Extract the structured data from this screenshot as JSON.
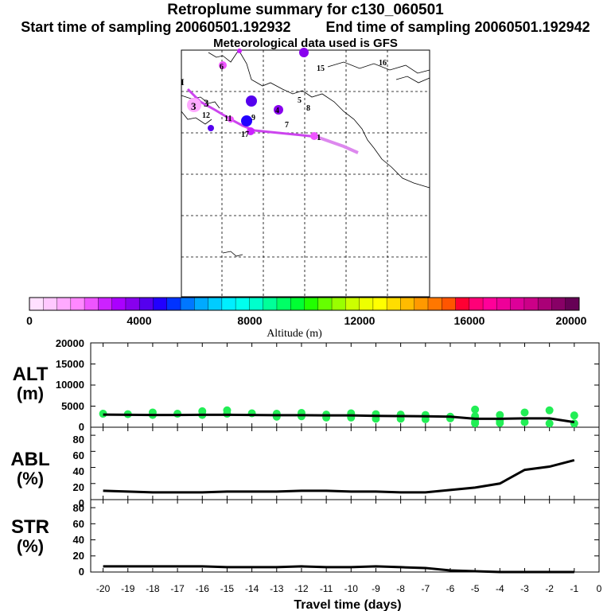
{
  "header": {
    "title": "Retroplume summary for c130_060501",
    "start_label": "Start time of sampling 20060501.192932",
    "end_label": "End time of sampling 20060501.192942",
    "met_label": "Meteorological data used is GFS"
  },
  "map": {
    "markers": [
      {
        "label": "1"
      },
      {
        "label": "3"
      },
      {
        "label": "4"
      },
      {
        "label": "5"
      },
      {
        "label": "6"
      },
      {
        "label": "7"
      },
      {
        "label": "8"
      },
      {
        "label": "9"
      },
      {
        "label": "11"
      },
      {
        "label": "12"
      },
      {
        "label": "15"
      },
      {
        "label": "16"
      },
      {
        "label": "17"
      },
      {
        "label": "3"
      },
      {
        "label": "I"
      }
    ]
  },
  "colorbar": {
    "label": "Altitude (m)",
    "tick_labels": [
      "0",
      "4000",
      "8000",
      "12000",
      "16000",
      "20000"
    ],
    "colors": [
      "#ffe0ff",
      "#ffc8ff",
      "#ffaaff",
      "#ff88ff",
      "#ee55ff",
      "#cc22ff",
      "#aa00ff",
      "#8800ee",
      "#5500ee",
      "#2200ff",
      "#0033ff",
      "#0077ff",
      "#00aaff",
      "#00ccff",
      "#00eeff",
      "#00ffee",
      "#00ffcc",
      "#00ff99",
      "#00ff66",
      "#00ff33",
      "#22ff00",
      "#66ff00",
      "#99ff00",
      "#ccff00",
      "#eeff00",
      "#ffff00",
      "#ffdd00",
      "#ffbb00",
      "#ff9900",
      "#ff7700",
      "#ff5500",
      "#ff0033",
      "#ff0077",
      "#ff0099",
      "#ee0099",
      "#dd0099",
      "#cc0088",
      "#aa0077",
      "#880066",
      "#660055"
    ]
  },
  "chart_data": [
    {
      "type": "line",
      "title": "ALT (m)",
      "panel_label": "ALT",
      "panel_unit": "(m)",
      "xlabel": "Travel time (days)",
      "ylim": [
        0,
        20000
      ],
      "yticks": [
        "0",
        "5000",
        "10000",
        "15000",
        "20000"
      ],
      "x": [
        -20,
        -19,
        -18,
        -17,
        -16,
        -15,
        -14,
        -13,
        -12,
        -11,
        -10,
        -9,
        -8,
        -7,
        -6,
        -5,
        -4,
        -3,
        -2,
        -1
      ],
      "series": [
        {
          "name": "median altitude",
          "values": [
            3000,
            2950,
            2900,
            2900,
            2950,
            2950,
            2900,
            2850,
            2850,
            2800,
            2800,
            2700,
            2650,
            2600,
            2500,
            2000,
            2000,
            2100,
            2100,
            1200
          ]
        }
      ],
      "scatter": {
        "name": "plume particle altitudes",
        "points": [
          [
            -20,
            3200
          ],
          [
            -19,
            3100
          ],
          [
            -18,
            3500
          ],
          [
            -18,
            2900
          ],
          [
            -17,
            3200
          ],
          [
            -16,
            3800
          ],
          [
            -16,
            2900
          ],
          [
            -15,
            4000
          ],
          [
            -15,
            3200
          ],
          [
            -14,
            3300
          ],
          [
            -13,
            3200
          ],
          [
            -13,
            2500
          ],
          [
            -12,
            3400
          ],
          [
            -12,
            2600
          ],
          [
            -11,
            3000
          ],
          [
            -11,
            2300
          ],
          [
            -10,
            3300
          ],
          [
            -10,
            2300
          ],
          [
            -9,
            3100
          ],
          [
            -9,
            2000
          ],
          [
            -8,
            3000
          ],
          [
            -8,
            2000
          ],
          [
            -7,
            2900
          ],
          [
            -7,
            1900
          ],
          [
            -6,
            2500
          ],
          [
            -6,
            2100
          ],
          [
            -5,
            4200
          ],
          [
            -5,
            2600
          ],
          [
            -5,
            1300
          ],
          [
            -5,
            900
          ],
          [
            -4,
            2900
          ],
          [
            -4,
            1500
          ],
          [
            -4,
            1000
          ],
          [
            -3,
            3500
          ],
          [
            -3,
            1200
          ],
          [
            -2,
            4000
          ],
          [
            -2,
            900
          ],
          [
            -1,
            2800
          ],
          [
            -1,
            900
          ]
        ]
      }
    },
    {
      "type": "line",
      "title": "ABL (%)",
      "panel_label": "ABL",
      "panel_unit": "(%)",
      "ylim": [
        0,
        90
      ],
      "yticks": [
        "0",
        "20",
        "40",
        "60",
        "80"
      ],
      "x": [
        -20,
        -19,
        -18,
        -17,
        -16,
        -15,
        -14,
        -13,
        -12,
        -11,
        -10,
        -9,
        -8,
        -7,
        -6,
        -5,
        -4,
        -3,
        -2,
        -1
      ],
      "series": [
        {
          "name": "ABL fraction",
          "values": [
            11,
            10,
            9,
            9,
            9,
            10,
            10,
            10,
            11,
            11,
            10,
            10,
            9,
            9,
            12,
            15,
            20,
            37,
            41,
            49
          ]
        }
      ]
    },
    {
      "type": "line",
      "title": "STR (%)",
      "panel_label": "STR",
      "panel_unit": "(%)",
      "ylim": [
        0,
        90
      ],
      "yticks": [
        "0",
        "20",
        "40",
        "60",
        "80"
      ],
      "x": [
        -20,
        -19,
        -18,
        -17,
        -16,
        -15,
        -14,
        -13,
        -12,
        -11,
        -10,
        -9,
        -8,
        -7,
        -6,
        -5,
        -4,
        -3,
        -2,
        -1
      ],
      "xticks": [
        "-20",
        "-19",
        "-18",
        "-17",
        "-16",
        "-15",
        "-14",
        "-13",
        "-12",
        "-11",
        "-10",
        "-9",
        "-8",
        "-7",
        "-6",
        "-5",
        "-4",
        "-3",
        "-2",
        "-1",
        "0"
      ],
      "series": [
        {
          "name": "stratospheric fraction",
          "values": [
            7,
            7,
            7,
            7,
            7,
            6,
            6,
            6,
            7,
            6,
            6,
            7,
            6,
            5,
            2,
            1,
            0,
            0,
            0,
            0
          ]
        }
      ]
    }
  ]
}
